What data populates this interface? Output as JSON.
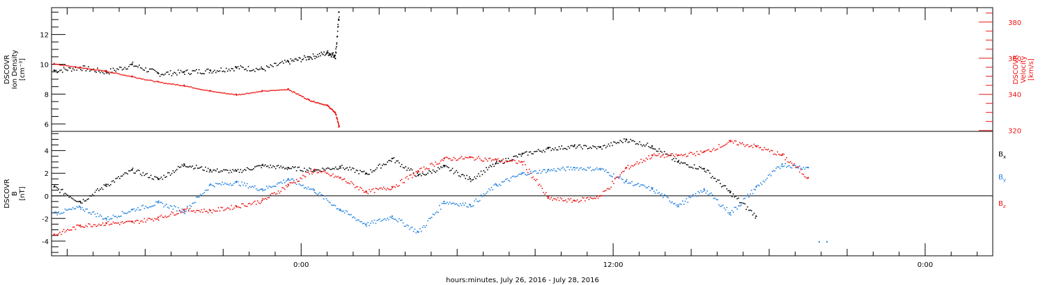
{
  "xlabel": "hours:minutes, July 26, 2016 - July 28, 2016",
  "x_tick_labels": [
    "0:00",
    "12:00",
    "0:00"
  ],
  "colors": {
    "black": "#000000",
    "red": "#ee1111",
    "blue": "#1e7fe0"
  },
  "chart_data": [
    {
      "type": "scatter",
      "instrument": "DSCOVR",
      "y_axis_left": {
        "label_lines": [
          "DSCOVR",
          "Ion Density",
          "[cm⁻³]"
        ],
        "ylim": [
          5.5,
          13.8
        ],
        "ticks": [
          6,
          8,
          10,
          12
        ],
        "tick_labels": [
          "6",
          "8",
          "10",
          "12"
        ],
        "minor": 0.5
      },
      "y_axis_right": {
        "label_lines": [
          "DSCOVR",
          "Velocity",
          "[km/s]"
        ],
        "ylim": [
          319.5,
          388.0
        ],
        "ticks": [
          320,
          340,
          360,
          380
        ],
        "tick_labels": [
          "320",
          "340",
          "360",
          "380"
        ],
        "minor": 5,
        "color": "#ee1111"
      },
      "x_unit": "hours relative to 2016-07-27 00:00",
      "xlim": [
        -9.6,
        26.6
      ],
      "series": [
        {
          "color": "#000000",
          "axis": "left",
          "x": [
            -9.5,
            -8.5,
            -7.5,
            -6.5,
            -5.5,
            -4.5,
            -3.5,
            -2.5,
            -1.5,
            -0.5,
            0.3,
            1.0,
            1.3,
            1.45
          ],
          "y": [
            9.6,
            9.8,
            9.5,
            10.0,
            9.4,
            9.5,
            9.6,
            9.8,
            9.7,
            10.2,
            10.5,
            10.8,
            10.6,
            13.5
          ]
        },
        {
          "color": "#ee1111",
          "axis": "right",
          "x": [
            -9.5,
            -8.5,
            -7.5,
            -6.5,
            -5.5,
            -4.5,
            -3.5,
            -2.5,
            -1.5,
            -0.5,
            0.3,
            1.0,
            1.3,
            1.45
          ],
          "y": [
            357,
            355,
            353,
            350,
            347,
            345,
            342,
            340,
            342,
            343,
            337,
            334,
            330,
            322
          ]
        }
      ]
    },
    {
      "type": "scatter",
      "y_axis_left": {
        "label_lines": [
          "DSCOVR",
          "B",
          "[nT]"
        ],
        "ylim": [
          -5.3,
          5.7
        ],
        "ticks": [
          -4,
          -2,
          0,
          2,
          4
        ],
        "tick_labels": [
          "-4",
          "-2",
          "0",
          "2",
          "4"
        ],
        "minor": 0.5
      },
      "zero_line": true,
      "x_unit": "hours relative to 2016-07-27 00:00",
      "xlim": [
        -9.6,
        26.6
      ],
      "series": [
        {
          "name": "Bx",
          "label_main": "B",
          "label_sub": "x",
          "color": "#000000",
          "x": [
            -9.5,
            -8.5,
            -7.5,
            -6.5,
            -5.5,
            -4.5,
            -3.5,
            -2.5,
            -1.5,
            -0.5,
            0.5,
            1.5,
            2.5,
            3.5,
            4.5,
            5.5,
            6.5,
            7.5,
            8.5,
            9.5,
            10.5,
            11.5,
            12.5,
            13.5,
            14.5,
            15.5,
            16.5,
            17.5
          ],
          "y": [
            0.8,
            -0.5,
            1.0,
            2.3,
            1.5,
            2.8,
            2.3,
            2.2,
            2.7,
            2.5,
            2.3,
            2.6,
            2.0,
            3.3,
            1.8,
            2.6,
            1.5,
            2.9,
            3.7,
            4.2,
            4.4,
            4.3,
            5.0,
            4.4,
            3.0,
            2.4,
            0.3,
            -1.8
          ]
        },
        {
          "name": "By",
          "label_main": "B",
          "label_sub": "y",
          "color": "#1e7fe0",
          "x": [
            -9.5,
            -8.5,
            -7.5,
            -6.5,
            -5.5,
            -4.5,
            -3.5,
            -2.5,
            -1.5,
            -0.5,
            0.5,
            1.5,
            2.5,
            3.5,
            4.5,
            5.5,
            6.5,
            7.5,
            8.5,
            9.5,
            10.5,
            11.5,
            12.5,
            13.5,
            14.5,
            15.5,
            16.5,
            17.5,
            18.5,
            19.5
          ],
          "y": [
            -1.5,
            -1.0,
            -2.0,
            -1.2,
            -0.6,
            -1.3,
            1.0,
            1.2,
            0.6,
            1.5,
            0.5,
            -1.2,
            -2.5,
            -1.8,
            -3.2,
            -0.5,
            -0.8,
            1.0,
            2.0,
            2.3,
            2.5,
            2.4,
            1.3,
            0.6,
            -0.8,
            0.6,
            -1.5,
            0.8,
            2.8,
            2.5
          ]
        },
        {
          "name": "Bz",
          "label_main": "B",
          "label_sub": "z",
          "color": "#ee1111",
          "x": [
            -9.5,
            -8.5,
            -7.5,
            -6.5,
            -5.5,
            -4.5,
            -3.5,
            -2.5,
            -1.5,
            -0.5,
            0.5,
            1.5,
            2.5,
            3.5,
            4.5,
            5.5,
            6.5,
            7.5,
            8.5,
            9.5,
            10.5,
            11.5,
            12.5,
            13.5,
            14.5,
            15.5,
            16.5,
            17.5,
            18.5,
            19.5
          ],
          "y": [
            -3.4,
            -2.6,
            -2.4,
            -2.3,
            -1.9,
            -1.2,
            -1.3,
            -0.9,
            -0.4,
            1.0,
            2.3,
            1.6,
            0.4,
            0.8,
            2.2,
            3.3,
            3.4,
            3.2,
            3.0,
            -0.2,
            -0.4,
            0.0,
            2.5,
            3.6,
            3.6,
            3.9,
            4.8,
            4.4,
            3.6,
            1.6
          ]
        }
      ],
      "extra_points": {
        "color": "#1e7fe0",
        "x": [
          19.9,
          20.2
        ],
        "y": [
          -4.0,
          -4.0
        ]
      }
    }
  ]
}
